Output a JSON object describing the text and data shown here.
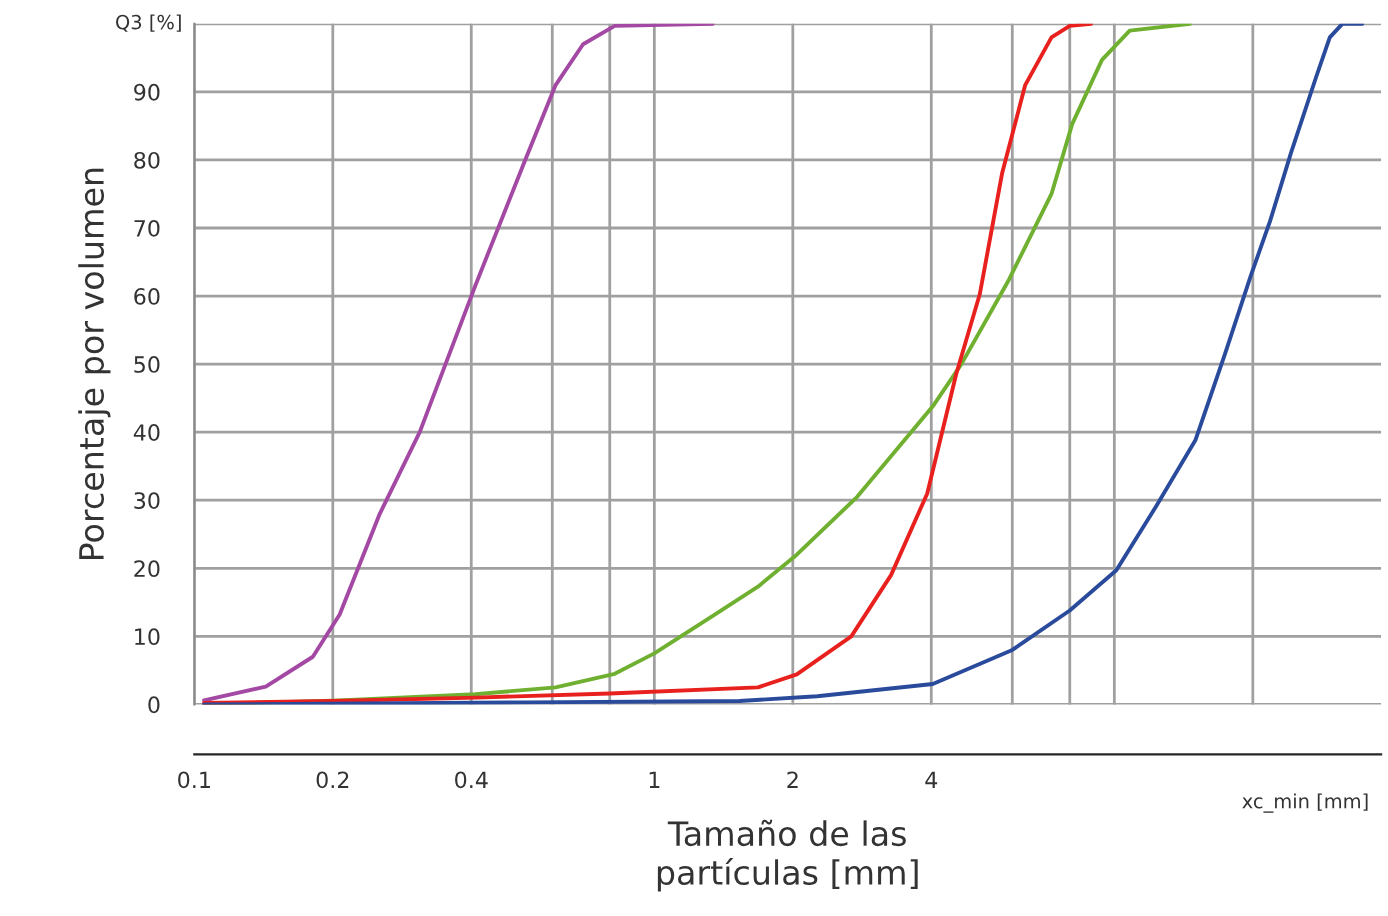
{
  "chart_data": {
    "type": "line",
    "xlabel": "Tamaño de las\npartículas [mm]",
    "ylabel": "Porcentaje por volumen",
    "annotations": [
      "Q3 [%]",
      "xc_min [mm]"
    ],
    "log": "x",
    "grid": true,
    "legend": false,
    "marker": "none",
    "line_style": "solid",
    "xlim": [
      0.1,
      38
    ],
    "xticks": [
      0.1,
      0.2,
      0.4,
      {
        "value": 0.6,
        "label": null
      },
      {
        "value": 0.8,
        "label": null
      },
      1,
      2,
      4,
      {
        "value": 6,
        "label": null
      },
      {
        "value": 8,
        "label": null
      },
      {
        "value": 10,
        "label": null
      },
      {
        "value": 20,
        "label": null
      }
    ],
    "ylim": [
      0,
      100
    ],
    "yticks": [
      0,
      10,
      20,
      30,
      40,
      50,
      60,
      70,
      80,
      90,
      {
        "value": 100,
        "label": null
      }
    ],
    "series": [
      {
        "color": "#a349a4",
        "x": [
          0.105,
          0.143,
          0.181,
          0.207,
          0.253,
          0.309,
          0.408,
          0.524,
          0.61,
          0.7,
          0.82,
          1.34
        ],
        "values": [
          0.6,
          2.6,
          7,
          13.2,
          28,
          40,
          61.5,
          80,
          91,
          97,
          99.7,
          100
        ]
      },
      {
        "color": "#70b030",
        "x": [
          0.105,
          0.207,
          0.408,
          0.61,
          0.82,
          1.0,
          1.34,
          1.68,
          2.04,
          2.76,
          4.03,
          4.65,
          5.9,
          7.3,
          8.1,
          9.4,
          10.8,
          14.6
        ],
        "values": [
          0,
          0.6,
          1.5,
          2.5,
          4.5,
          7.5,
          13,
          17.3,
          22,
          30.5,
          43.8,
          50,
          62.4,
          75,
          85.3,
          94.7,
          99,
          100
        ]
      },
      {
        "color": "#e8201e",
        "x": [
          0.105,
          0.2,
          0.41,
          0.8,
          1.68,
          2.04,
          2.68,
          3.27,
          3.92,
          4.53,
          5.1,
          5.7,
          6.4,
          7.3,
          8.0,
          8.9
        ],
        "values": [
          0.2,
          0.5,
          1,
          1.6,
          2.5,
          4.4,
          10,
          19,
          31,
          48.5,
          60.3,
          78,
          91,
          98,
          99.7,
          100
        ]
      },
      {
        "color": "#2a4a9c",
        "x": [
          0.105,
          0.53,
          1.53,
          2.26,
          4.03,
          6.0,
          8.0,
          10.1,
          12.3,
          15,
          17.4,
          19.8,
          21.8,
          24.2,
          27.4,
          29.4,
          31.3,
          34.6
        ],
        "values": [
          0,
          0.3,
          0.5,
          1.2,
          3,
          8,
          13.8,
          19.7,
          29,
          38.8,
          51.5,
          63,
          71,
          81,
          92,
          98,
          100,
          100
        ]
      }
    ]
  }
}
